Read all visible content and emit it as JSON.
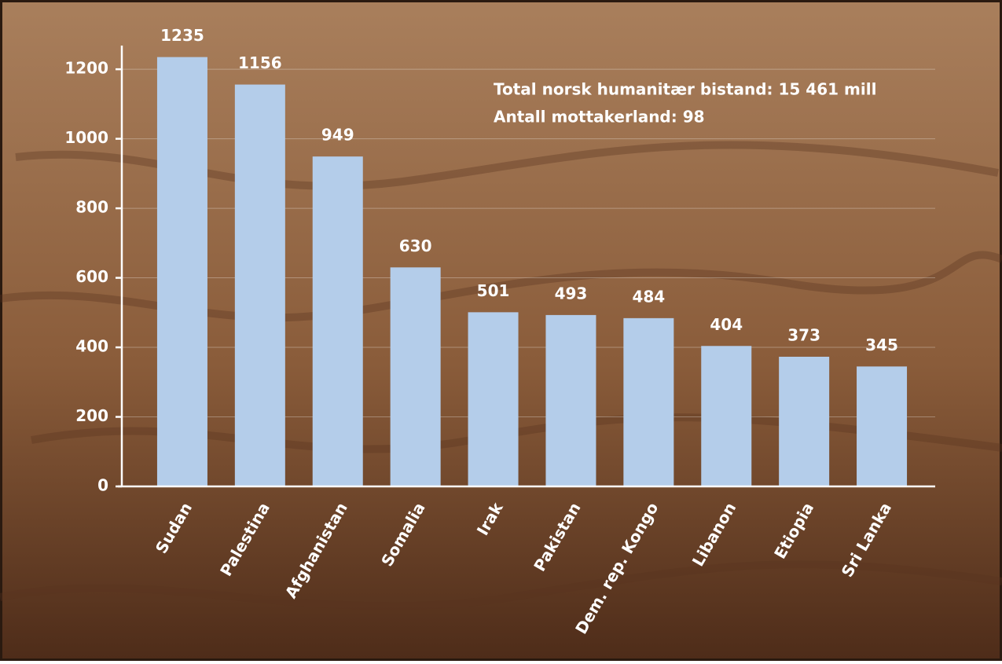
{
  "chart_data": {
    "type": "bar",
    "categories": [
      "Sudan",
      "Palestina",
      "Afghanistan",
      "Somalia",
      "Irak",
      "Pakistan",
      "Dem. rep. Kongo",
      "Libanon",
      "Etiopia",
      "Sri Lanka"
    ],
    "values": [
      1235,
      1156,
      949,
      630,
      501,
      493,
      484,
      404,
      373,
      345
    ],
    "color": "#b4cdea",
    "ylim": [
      0,
      1250
    ],
    "yticks": [
      0,
      200,
      400,
      600,
      800,
      1000,
      1200
    ],
    "grid": true,
    "annotations": [
      "Total  norsk humanitær bistand: 15 461 mill",
      "Antall mottakerland: 98"
    ]
  }
}
